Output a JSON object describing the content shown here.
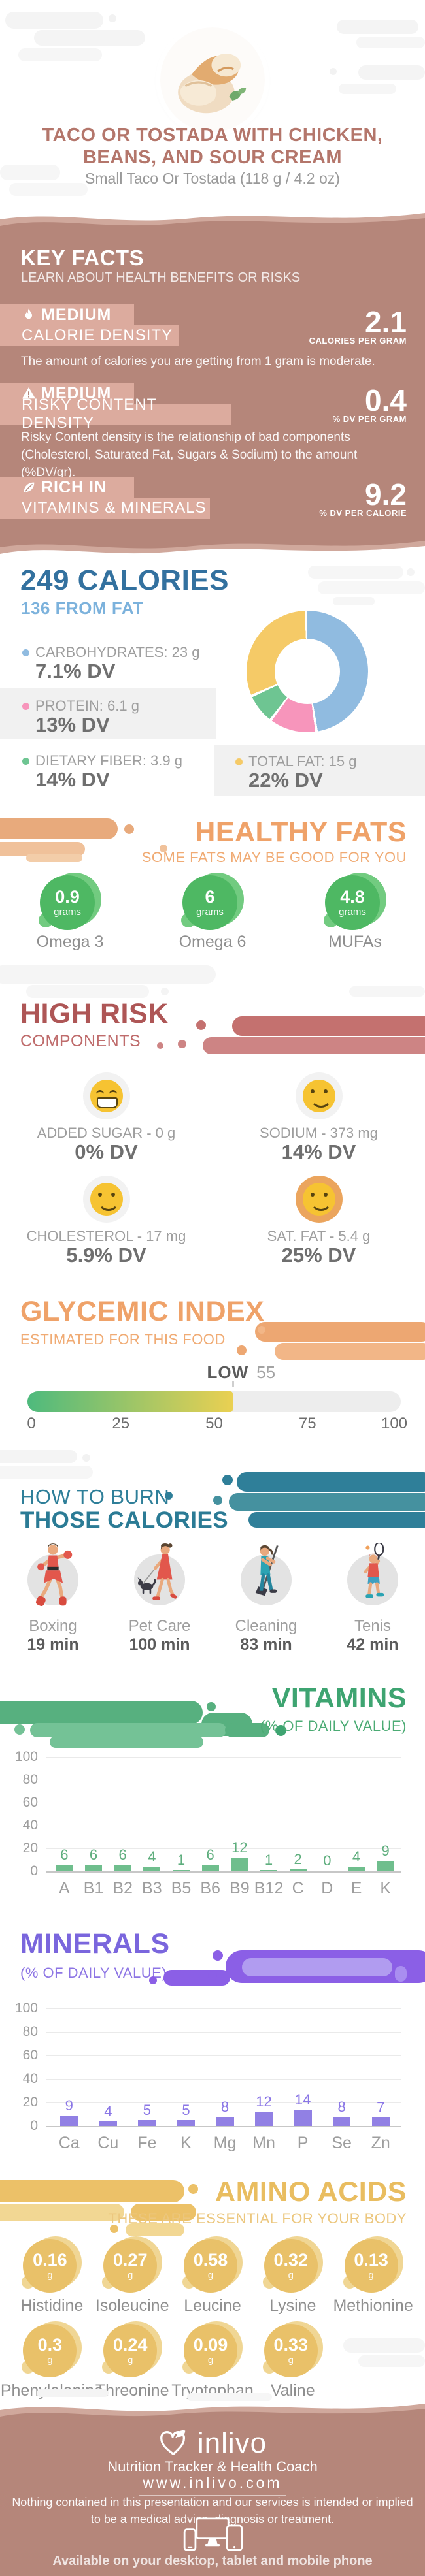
{
  "header": {
    "title_line1": "TACO OR TOSTADA WITH CHICKEN,",
    "title_line2": "BEANS, AND SOUR CREAM",
    "subtitle": "Small Taco Or Tostada (118 g / 4.2 oz)"
  },
  "key_facts": {
    "title": "KEY FACTS",
    "subtitle": "LEARN ABOUT HEALTH BENEFITS OR RISKS",
    "facts": [
      {
        "icon": "flame-icon",
        "badge": "MEDIUM",
        "badge2": "CALORIE DENSITY",
        "value": "2.1",
        "unit": "CALORIES PER GRAM",
        "desc": "The amount of calories you are getting from 1 gram is moderate."
      },
      {
        "icon": "warning-icon",
        "badge": "MEDIUM",
        "badge2": "RISKY CONTENT DENSITY",
        "value": "0.4",
        "unit": "% DV PER GRAM",
        "desc": "Risky Content density is the relationship of bad components (Cholesterol, Saturated Fat, Sugars & Sodium) to the amount (%DV/gr)."
      },
      {
        "icon": "leaf-icon",
        "badge": "RICH  IN",
        "badge2": "VITAMINS & MINERALS",
        "value": "9.2",
        "unit": "% DV PER CALORIE",
        "desc": ""
      }
    ]
  },
  "calories": {
    "title": "249 CALORIES",
    "subtitle": "136 FROM FAT",
    "legend": [
      {
        "label": "CARBOHYDRATES: 23 g",
        "dv": "7.1% DV",
        "color": "#90bbe0"
      },
      {
        "label": "PROTEIN: 6.1 g",
        "dv": "13% DV",
        "color": "#f795bb"
      },
      {
        "label": "DIETARY FIBER: 3.9 g",
        "dv": "14% DV",
        "color": "#6ec592"
      },
      {
        "label": "TOTAL FAT: 15 g",
        "dv": "22% DV",
        "color": "#f5ca67"
      }
    ]
  },
  "healthy_fats": {
    "title": "HEALTHY FATS",
    "subtitle": "SOME FATS MAY BE GOOD FOR YOU",
    "items": [
      {
        "value": "0.9",
        "unit": "grams",
        "label": "Omega 3"
      },
      {
        "value": "6",
        "unit": "grams",
        "label": "Omega 6"
      },
      {
        "value": "4.8",
        "unit": "grams",
        "label": "MUFAs"
      }
    ]
  },
  "high_risk": {
    "title": "HIGH RISK",
    "subtitle": "COMPONENTS",
    "items": [
      {
        "icon": "grin-emoji",
        "label": "ADDED SUGAR - 0 g",
        "dv": "0% DV",
        "bg": "#f2f2f2"
      },
      {
        "icon": "smile-emoji",
        "label": "SODIUM - 373 mg",
        "dv": "14% DV",
        "bg": "#f2f2f2"
      },
      {
        "icon": "smile-emoji",
        "label": "CHOLESTEROL - 17 mg",
        "dv": "5.9% DV",
        "bg": "#f2f2f2"
      },
      {
        "icon": "smile-emoji",
        "label": "SAT. FAT - 5.4 g",
        "dv": "25% DV",
        "bg": "#eba55e"
      }
    ]
  },
  "glycemic": {
    "title": "GLYCEMIC INDEX",
    "subtitle": "ESTIMATED FOR THIS FOOD"
  },
  "burn": {
    "title_line1": "HOW TO BURN",
    "title_line2": "THOSE CALORIES",
    "activities": [
      {
        "icon": "boxing-figure-icon",
        "label": "Boxing",
        "time": "19 min"
      },
      {
        "icon": "pet-care-figure-icon",
        "label": "Pet Care",
        "time": "100 min"
      },
      {
        "icon": "cleaning-figure-icon",
        "label": "Cleaning",
        "time": "83 min"
      },
      {
        "icon": "tennis-figure-icon",
        "label": "Tenis",
        "time": "42 min"
      }
    ]
  },
  "amino_acids": {
    "title": "AMINO ACIDS",
    "subtitle": "THESE ARE ESSENTIAL FOR YOUR BODY",
    "items": [
      {
        "value": "0.16",
        "unit": "g",
        "label": "Histidine"
      },
      {
        "value": "0.27",
        "unit": "g",
        "label": "Isoleucine"
      },
      {
        "value": "0.58",
        "unit": "g",
        "label": "Leucine"
      },
      {
        "value": "0.32",
        "unit": "g",
        "label": "Lysine"
      },
      {
        "value": "0.13",
        "unit": "g",
        "label": "Methionine"
      },
      {
        "value": "0.3",
        "unit": "g",
        "label": "Phenylalanine"
      },
      {
        "value": "0.24",
        "unit": "g",
        "label": "Threonine"
      },
      {
        "value": "0.09",
        "unit": "g",
        "label": "Tryptophan"
      },
      {
        "value": "0.33",
        "unit": "g",
        "label": "Valine"
      }
    ]
  },
  "footer": {
    "brand": "inlivo",
    "tagline": "Nutrition Tracker & Health Coach",
    "url": "www.inlivo.com",
    "disclaimer_line1": "Nothing contained in this presentation and our services is intended or implied",
    "disclaimer_line2": "to be a medical advice, diagnosis or treatment.",
    "availability": "Available on your desktop, tablet and mobile phone"
  },
  "palette": {
    "rose": "#b5867a",
    "rose_light": "#d0a89c",
    "badge_pink": "#dcab9e",
    "blue_heading": "#33719f",
    "blue_light": "#7cb2dc",
    "orange": "#efa269",
    "red": "#ae5656",
    "teal": "#2f7f99",
    "green": "#3ea471",
    "purple": "#7a66dd",
    "gold": "#e9bd60",
    "green_badge": "#4eb863",
    "emoji_yellow": "#f6c332"
  },
  "chart_data": [
    {
      "id": "macros_donut",
      "type": "pie",
      "title": "249 CALORIES",
      "subtitle": "136 FROM FAT",
      "labels": [
        "Carbohydrates",
        "Protein",
        "Dietary Fiber",
        "Total Fat"
      ],
      "values_grams": [
        23,
        6.1,
        3.9,
        15
      ],
      "dv_percent": [
        "7.1% DV",
        "13% DV",
        "14% DV",
        "22% DV"
      ],
      "colors": [
        "#90bbe0",
        "#f795bb",
        "#6ec592",
        "#f5ca67"
      ],
      "hole": true,
      "start_angle_deg": 0,
      "direction": "clockwise"
    },
    {
      "id": "glycemic_gauge",
      "type": "gauge",
      "label": "LOW",
      "value": 55,
      "min": 0,
      "max": 100,
      "ticks": [
        0,
        25,
        50,
        75,
        100
      ],
      "fill_gradient": [
        "#4eba7d",
        "#ead052"
      ],
      "track_color": "#ededed"
    },
    {
      "id": "vitamins_bars",
      "type": "bar",
      "title": "VITAMINS",
      "subtitle": "(% OF DAILY VALUE)",
      "categories": [
        "A",
        "B1",
        "B2",
        "B3",
        "B5",
        "B6",
        "B9",
        "B12",
        "C",
        "D",
        "E",
        "K"
      ],
      "values": [
        6,
        6,
        6,
        4,
        1,
        6,
        12,
        1,
        2,
        0,
        4,
        9
      ],
      "ylim": [
        0,
        100
      ],
      "yticks": [
        0,
        20,
        40,
        60,
        80,
        100
      ],
      "bar_color": "#6fbe8d",
      "label_color": "#5fae7e",
      "grid": true,
      "legend_position": "none"
    },
    {
      "id": "minerals_bars",
      "type": "bar",
      "title": "MINERALS",
      "subtitle": "(% OF DAILY VALUE)",
      "categories": [
        "Ca",
        "Cu",
        "Fe",
        "K",
        "Mg",
        "Mn",
        "P",
        "Se",
        "Zn"
      ],
      "values": [
        9,
        4,
        5,
        5,
        8,
        12,
        14,
        8,
        7
      ],
      "ylim": [
        0,
        100
      ],
      "yticks": [
        0,
        20,
        40,
        60,
        80,
        100
      ],
      "bar_color": "#9180e4",
      "label_color": "#8a76e6",
      "grid": true,
      "legend_position": "none"
    }
  ]
}
